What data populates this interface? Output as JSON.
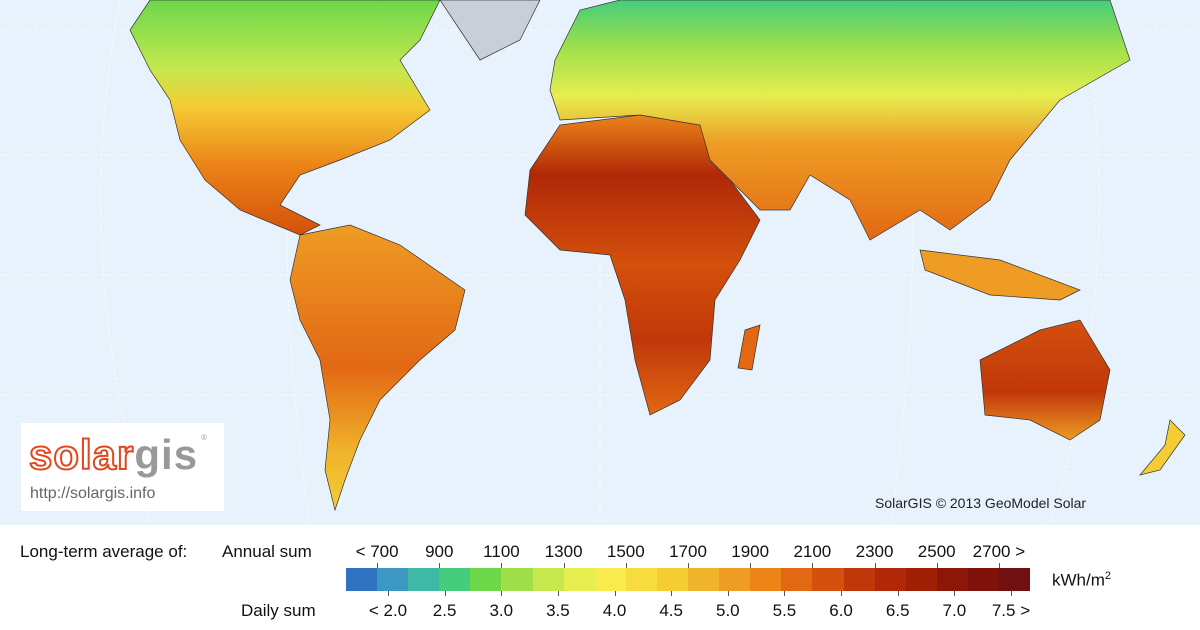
{
  "map": {
    "ocean_color": "#e8f2fc",
    "graticule_color": "#ffffff",
    "land_outline_color": "#333333"
  },
  "logo": {
    "text_solar": "solar",
    "text_gis": "gis",
    "registered": "®",
    "url": "http://solargis.info"
  },
  "copyright": "SolarGIS © 2013 GeoModel Solar",
  "legend": {
    "title": "Long-term average of:",
    "annual_label": "Annual sum",
    "daily_label": "Daily sum",
    "unit": "kWh/m",
    "unit_sup": "2",
    "annual_ticks": [
      "< 700",
      "900",
      "1100",
      "1300",
      "1500",
      "1700",
      "1900",
      "2100",
      "2300",
      "2500",
      "2700 >"
    ],
    "daily_ticks": [
      "< 2.0",
      "2.5",
      "3.0",
      "3.5",
      "4.0",
      "4.5",
      "5.0",
      "5.5",
      "6.0",
      "6.5",
      "7.0",
      "7.5 >"
    ],
    "colors": [
      "#2f72c0",
      "#3c98c2",
      "#3fb8a6",
      "#45cc7c",
      "#6cd84a",
      "#9fe04a",
      "#c6e84e",
      "#e6ee50",
      "#f9eb4e",
      "#f7dc40",
      "#f4cc34",
      "#f0b42c",
      "#ee9c24",
      "#ec8418",
      "#e26814",
      "#d4500c",
      "#c0380a",
      "#b02808",
      "#a02006",
      "#8c1608",
      "#80120c",
      "#701010"
    ]
  }
}
